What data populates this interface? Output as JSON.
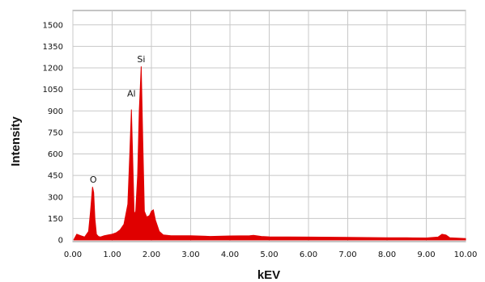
{
  "chart_data": {
    "type": "area",
    "xlabel": "kEV",
    "ylabel": "Intensity",
    "xlim": [
      0,
      10
    ],
    "ylim": [
      0,
      1600
    ],
    "grid": true,
    "x_ticks": [
      0,
      1,
      2,
      3,
      4,
      5,
      6,
      7,
      8,
      9,
      10
    ],
    "x_tick_labels": [
      "0.00",
      "1.00",
      "2.00",
      "3.00",
      "4.00",
      "5.00",
      "6.00",
      "7.00",
      "8.00",
      "9.00",
      "10.00"
    ],
    "y_ticks": [
      0,
      150,
      300,
      450,
      600,
      750,
      900,
      1050,
      1200,
      1350,
      1500
    ],
    "y_tick_labels": [
      "0",
      "150",
      "300",
      "450",
      "600",
      "750",
      "900",
      "1050",
      "1200",
      "1350",
      "1500"
    ],
    "series": [
      {
        "color": "#e00000",
        "x": [
          0.02,
          0.1,
          0.2,
          0.3,
          0.4,
          0.45,
          0.5,
          0.53,
          0.56,
          0.6,
          0.65,
          0.7,
          0.8,
          0.9,
          1.0,
          1.1,
          1.2,
          1.3,
          1.4,
          1.45,
          1.49,
          1.53,
          1.56,
          1.6,
          1.65,
          1.69,
          1.74,
          1.78,
          1.82,
          1.88,
          1.95,
          2.0,
          2.05,
          2.1,
          2.2,
          2.3,
          2.5,
          3.0,
          3.5,
          4.0,
          4.5,
          4.6,
          4.8,
          5.0,
          6.0,
          7.0,
          8.0,
          8.5,
          9.0,
          9.3,
          9.4,
          9.5,
          9.6,
          10.0
        ],
        "values": [
          0,
          40,
          30,
          20,
          60,
          200,
          370,
          330,
          150,
          40,
          25,
          20,
          30,
          35,
          40,
          50,
          70,
          110,
          250,
          600,
          910,
          500,
          180,
          200,
          450,
          900,
          1210,
          700,
          200,
          160,
          170,
          200,
          210,
          140,
          60,
          35,
          30,
          30,
          25,
          28,
          30,
          32,
          25,
          22,
          20,
          18,
          16,
          15,
          14,
          20,
          40,
          35,
          15,
          10
        ]
      }
    ],
    "annotations": [
      {
        "text": "O",
        "x": 0.52,
        "y": 400
      },
      {
        "text": "Al",
        "x": 1.49,
        "y": 1000
      },
      {
        "text": "Si",
        "x": 1.74,
        "y": 1240
      }
    ]
  }
}
